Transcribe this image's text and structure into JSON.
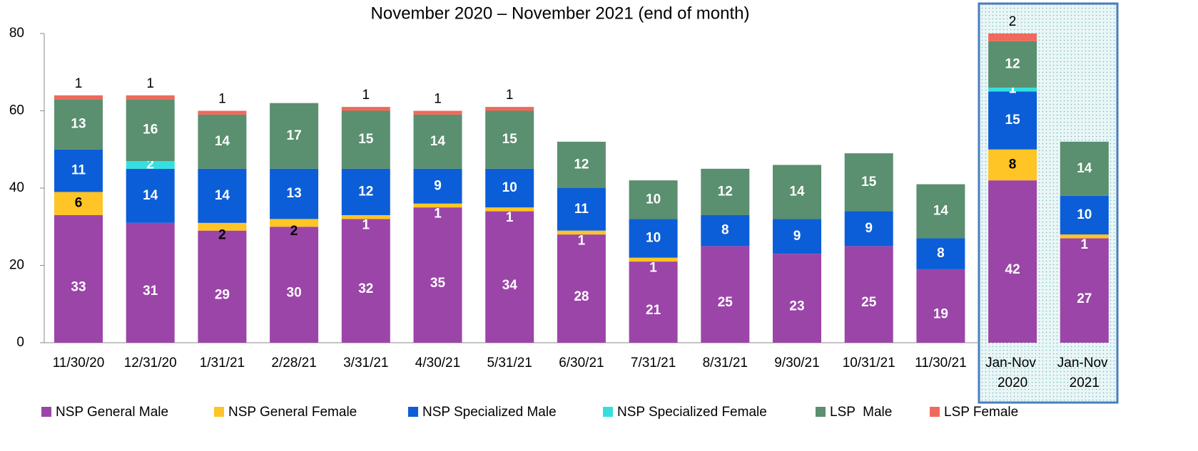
{
  "chart_data": {
    "type": "stacked-bar",
    "title": "November 2020 – November 2021 (end of month)",
    "categories": [
      "11/30/20",
      "12/31/20",
      "1/31/21",
      "2/28/21",
      "3/31/21",
      "4/30/21",
      "5/31/21",
      "6/30/21",
      "7/31/21",
      "8/31/21",
      "9/30/21",
      "10/31/21",
      "11/30/21",
      "Jan-Nov 2020",
      "Jan-Nov 2021"
    ],
    "series": [
      {
        "name": "NSP General Male",
        "color": "#9b45a8",
        "values": [
          33,
          31,
          29,
          30,
          32,
          35,
          34,
          28,
          21,
          25,
          23,
          25,
          19,
          42,
          27
        ]
      },
      {
        "name": "NSP General Female",
        "color": "#ffc425",
        "values": [
          6,
          null,
          2,
          2,
          1,
          1,
          1,
          1,
          1,
          null,
          null,
          null,
          null,
          8,
          1
        ]
      },
      {
        "name": "NSP Specialized Male",
        "color": "#0b5ed7",
        "values": [
          11,
          14,
          14,
          13,
          12,
          9,
          10,
          11,
          10,
          8,
          9,
          9,
          8,
          15,
          10
        ]
      },
      {
        "name": "NSP Specialized Female",
        "color": "#35dfe0",
        "values": [
          null,
          2,
          null,
          null,
          null,
          null,
          null,
          null,
          null,
          null,
          null,
          null,
          null,
          1,
          null
        ]
      },
      {
        "name": "LSP  Male",
        "color": "#5a8f6f",
        "values": [
          13,
          16,
          14,
          17,
          15,
          14,
          15,
          12,
          10,
          12,
          14,
          15,
          14,
          12,
          14
        ]
      },
      {
        "name": "LSP Female",
        "color": "#ef6a5c",
        "values": [
          1,
          1,
          1,
          null,
          1,
          1,
          1,
          null,
          null,
          null,
          null,
          null,
          null,
          2,
          null
        ]
      }
    ],
    "ylim": [
      0,
      80
    ],
    "yticks": [
      0,
      20,
      40,
      60,
      80
    ]
  }
}
